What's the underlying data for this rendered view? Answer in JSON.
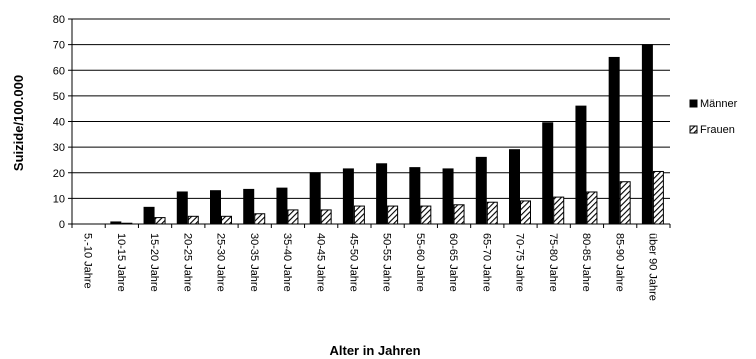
{
  "chart_data": {
    "type": "bar",
    "categories": [
      "5.-10 Jahre",
      "10-15 Jahre",
      "15-20 Jahre",
      "20-25 Jahre",
      "25-30 Jahre",
      "30-35 Jahre",
      "35-40 Jahre",
      "40-45 Jahre",
      "45-50 Jahre",
      "50-55 Jahre",
      "55-60 Jahre",
      "60-65 Jahre",
      "65-70 Jahre",
      "70-75 Jahre",
      "75-80 Jahre",
      "80-85 Jahre",
      "85-90 Jahre",
      "über 90 Jahre"
    ],
    "series": [
      {
        "name": "Männer",
        "values": [
          0,
          0.8,
          6.5,
          12.5,
          13,
          13.5,
          14,
          20,
          21.5,
          23.5,
          22,
          21.5,
          26,
          29,
          39.5,
          46,
          65,
          70
        ],
        "color": "#000000",
        "pattern": "solid"
      },
      {
        "name": "Frauen",
        "values": [
          0,
          0.3,
          2.5,
          3,
          3,
          4,
          5.5,
          5.5,
          7,
          7,
          7,
          7.5,
          8.5,
          9,
          10.5,
          12.5,
          16.5,
          20.5
        ],
        "color": "#000000",
        "pattern": "hatched"
      }
    ],
    "xlabel": "Alter in Jahren",
    "ylabel": "Suizide/100.000",
    "ylim": [
      0,
      80
    ],
    "yticks": [
      0,
      10,
      20,
      30,
      40,
      50,
      60,
      70,
      80
    ],
    "grid": true,
    "legend_position": "right"
  }
}
